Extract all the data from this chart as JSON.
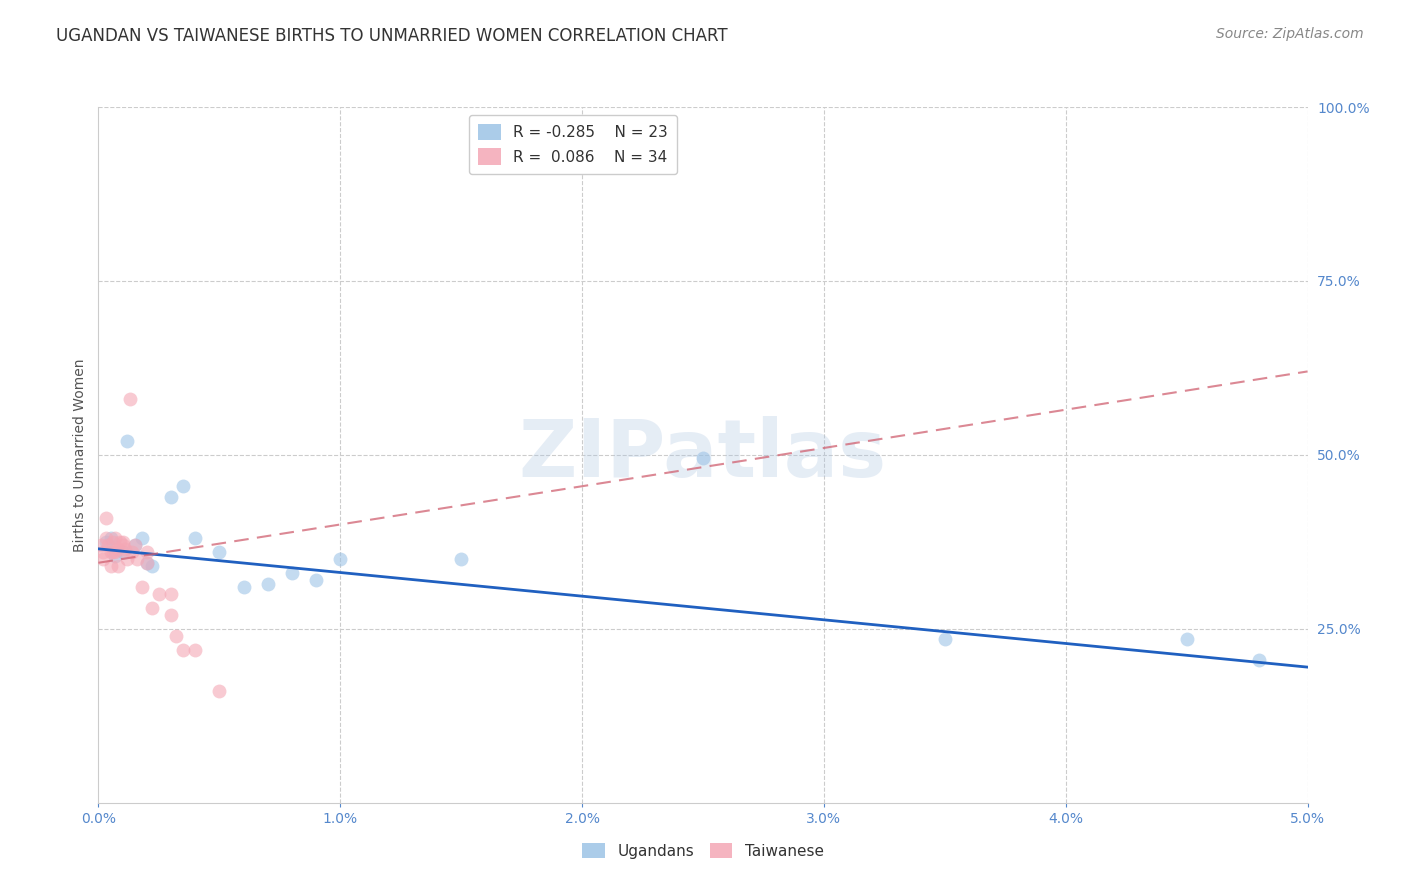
{
  "title": "UGANDAN VS TAIWANESE BIRTHS TO UNMARRIED WOMEN CORRELATION CHART",
  "source": "Source: ZipAtlas.com",
  "ylabel": "Births to Unmarried Women",
  "xlabel": "",
  "xlim": [
    0.0,
    0.05
  ],
  "ylim": [
    0.0,
    1.0
  ],
  "xticks": [
    0.0,
    0.01,
    0.02,
    0.03,
    0.04,
    0.05
  ],
  "xtick_labels": [
    "0.0%",
    "1.0%",
    "2.0%",
    "3.0%",
    "4.0%",
    "5.0%"
  ],
  "yticks_right": [
    0.25,
    0.5,
    0.75,
    1.0
  ],
  "ytick_labels_right": [
    "25.0%",
    "50.0%",
    "75.0%",
    "100.0%"
  ],
  "ugandan_color": "#9dc3e6",
  "taiwanese_color": "#f4a7b5",
  "ugandan_R": -0.285,
  "ugandan_N": 23,
  "taiwanese_R": 0.086,
  "taiwanese_N": 34,
  "background_color": "#ffffff",
  "grid_color": "#cccccc",
  "ugandan_x": [
    0.0003,
    0.0005,
    0.0007,
    0.001,
    0.0012,
    0.0015,
    0.0018,
    0.002,
    0.0022,
    0.003,
    0.0035,
    0.004,
    0.005,
    0.006,
    0.007,
    0.008,
    0.009,
    0.01,
    0.015,
    0.025,
    0.035,
    0.045,
    0.048
  ],
  "ugandan_y": [
    0.375,
    0.38,
    0.355,
    0.36,
    0.52,
    0.37,
    0.38,
    0.345,
    0.34,
    0.44,
    0.455,
    0.38,
    0.36,
    0.31,
    0.315,
    0.33,
    0.32,
    0.35,
    0.35,
    0.495,
    0.235,
    0.235,
    0.205
  ],
  "taiwanese_x": [
    0.0001,
    0.0002,
    0.0002,
    0.0003,
    0.0003,
    0.0004,
    0.0005,
    0.0005,
    0.0006,
    0.0006,
    0.0007,
    0.0007,
    0.0008,
    0.0008,
    0.0009,
    0.001,
    0.001,
    0.0011,
    0.0012,
    0.0013,
    0.0014,
    0.0015,
    0.0016,
    0.0018,
    0.002,
    0.002,
    0.0022,
    0.0025,
    0.003,
    0.003,
    0.0032,
    0.0035,
    0.004,
    0.005
  ],
  "taiwanese_y": [
    0.37,
    0.35,
    0.36,
    0.38,
    0.41,
    0.37,
    0.36,
    0.34,
    0.375,
    0.36,
    0.38,
    0.36,
    0.365,
    0.34,
    0.375,
    0.375,
    0.37,
    0.365,
    0.35,
    0.58,
    0.36,
    0.37,
    0.35,
    0.31,
    0.36,
    0.345,
    0.28,
    0.3,
    0.3,
    0.27,
    0.24,
    0.22,
    0.22,
    0.16
  ],
  "title_fontsize": 12,
  "axis_fontsize": 10,
  "tick_fontsize": 10,
  "legend_fontsize": 11,
  "source_fontsize": 10,
  "marker_size": 100,
  "marker_alpha": 0.6,
  "ugandan_line_color": "#2060c0",
  "taiwanese_line_color": "#d06070",
  "watermark": "ZIPatlas",
  "watermark_color": "#aac4e0",
  "watermark_alpha": 0.3,
  "ugandan_trendline_x": [
    0.0,
    0.05
  ],
  "ugandan_trendline_y": [
    0.365,
    0.195
  ],
  "taiwanese_trendline_x": [
    0.0,
    0.05
  ],
  "taiwanese_trendline_y": [
    0.345,
    0.62
  ]
}
